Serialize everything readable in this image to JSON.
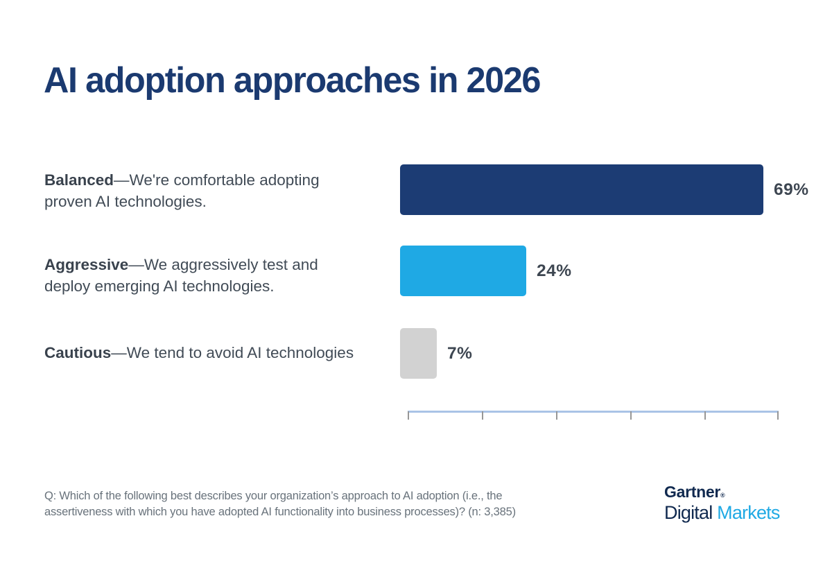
{
  "title": "AI adoption approaches in 2026",
  "chart_data": {
    "type": "bar",
    "orientation": "horizontal",
    "title": "AI adoption approaches in 2026",
    "categories": [
      "Balanced",
      "Aggressive",
      "Cautious"
    ],
    "values": [
      69,
      24,
      7
    ],
    "value_labels": [
      "69%",
      "24%",
      "7%"
    ],
    "category_descriptions": [
      "We're comfortable adopting proven AI technologies.",
      "We aggressively test and deploy emerging AI technologies.",
      "We tend to avoid AI technologies"
    ],
    "bar_colors": [
      "#1c3c74",
      "#1fa9e4",
      "#d2d2d2"
    ],
    "xlim": [
      0,
      70
    ],
    "axis_tick_count": 6,
    "grid": false,
    "legend": false,
    "value_label_position": "right-of-bar"
  },
  "rows": [
    {
      "term": "Balanced",
      "dash": "—",
      "desc_line1": "We're comfortable adopting",
      "desc_line2": "proven AI technologies.",
      "value": 69,
      "value_label": "69%",
      "color": "#1c3c74"
    },
    {
      "term": "Aggressive",
      "dash": "—",
      "desc_line1": "We aggressively test and",
      "desc_line2": "deploy emerging AI technologies.",
      "value": 24,
      "value_label": "24%",
      "color": "#1fa9e4"
    },
    {
      "term": "Cautious",
      "dash": "—",
      "desc_line1": "We tend to avoid AI technologies",
      "value": 7,
      "value_label": "7%",
      "color": "#d2d2d2"
    }
  ],
  "footnote": {
    "line1": "Q: Which of the following best describes your organization’s approach to AI adoption (i.e., the",
    "line2": "assertiveness with which you have adopted AI functionality into business processes)? (n: 3,385)"
  },
  "logo": {
    "gartner": "Gartner",
    "registered": "®",
    "digital": "Digital ",
    "markets": "Markets"
  },
  "colors": {
    "title_navy": "#1b3a70",
    "bar_navy": "#1c3c74",
    "bar_lightblue": "#1fa9e4",
    "bar_gray": "#d2d2d2",
    "label_text": "#414b56",
    "value_text": "#3d4651",
    "axis_line": "#a9c3e6",
    "axis_tick": "#979797",
    "footnote_text": "#68727b",
    "logo_navy": "#10294f"
  }
}
